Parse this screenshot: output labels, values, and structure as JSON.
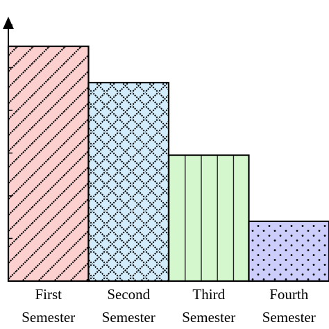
{
  "chart_data": {
    "type": "bar",
    "title": "",
    "xlabel": "",
    "ylabel": "",
    "categories": [
      [
        "First",
        "Semester"
      ],
      [
        "Second",
        "Semester"
      ],
      [
        "Third",
        "Semester"
      ],
      [
        "Fourth",
        "Semester"
      ]
    ],
    "values": [
      11.0,
      9.3,
      5.9,
      2.8
    ],
    "ylim": [
      0,
      12
    ],
    "yticks": [
      0,
      2,
      4,
      6,
      8,
      10,
      12
    ],
    "grid": false,
    "legend": "none",
    "bars": [
      {
        "fill": "#fdd0d0",
        "pattern": "diagonal-lines",
        "pattern_color": "#000000"
      },
      {
        "fill": "#d2ecfb",
        "pattern": "crosshatch-diamond",
        "pattern_color": "#000000"
      },
      {
        "fill": "#d4f7cd",
        "pattern": "vertical-lines",
        "pattern_color": "#000000"
      },
      {
        "fill": "#cdcdfb",
        "pattern": "dots",
        "pattern_color": "#000000"
      }
    ],
    "axis_color": "#000000",
    "edge_color": "#000000"
  }
}
